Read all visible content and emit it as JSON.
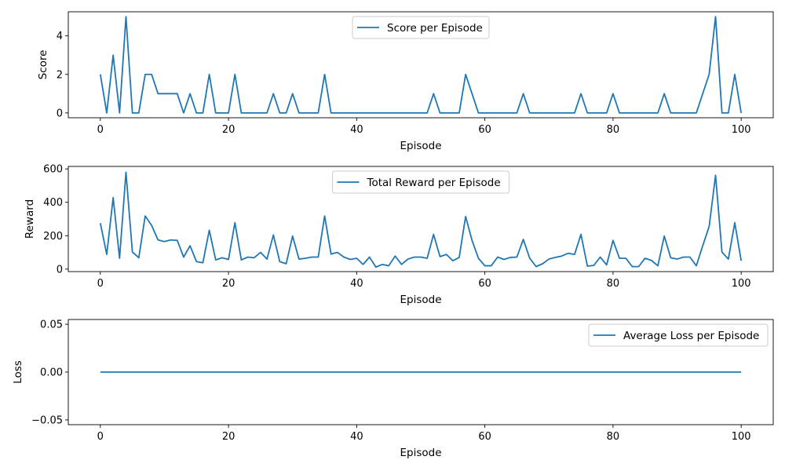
{
  "chart_data": [
    {
      "type": "line",
      "title": "",
      "xlabel": "Episode",
      "ylabel": "Score",
      "xlim": [
        -5,
        105
      ],
      "ylim": [
        -0.25,
        5.25
      ],
      "xticks": [
        0,
        20,
        40,
        60,
        80,
        100
      ],
      "yticks": [
        0,
        2,
        4
      ],
      "legend_position": "upper-center",
      "grid": false,
      "color": "#1f77b4",
      "series": [
        {
          "name": "Score per Episode",
          "x": [
            0,
            1,
            2,
            3,
            4,
            5,
            6,
            7,
            8,
            9,
            10,
            11,
            12,
            13,
            14,
            15,
            16,
            17,
            18,
            19,
            20,
            21,
            22,
            23,
            24,
            25,
            26,
            27,
            28,
            29,
            30,
            31,
            32,
            33,
            34,
            35,
            36,
            37,
            38,
            39,
            40,
            41,
            42,
            43,
            44,
            45,
            46,
            47,
            48,
            49,
            50,
            51,
            52,
            53,
            54,
            55,
            56,
            57,
            58,
            59,
            60,
            61,
            62,
            63,
            64,
            65,
            66,
            67,
            68,
            69,
            70,
            71,
            72,
            73,
            74,
            75,
            76,
            77,
            78,
            79,
            80,
            81,
            82,
            83,
            84,
            85,
            86,
            87,
            88,
            89,
            90,
            91,
            92,
            93,
            94,
            95,
            96,
            97,
            98,
            99,
            100
          ],
          "values": [
            2,
            0,
            3,
            0,
            5,
            0,
            0,
            2,
            2,
            1,
            1,
            1,
            1,
            0,
            1,
            0,
            0,
            2,
            0,
            0,
            0,
            2,
            0,
            0,
            0,
            0,
            0,
            1,
            0,
            0,
            1,
            0,
            0,
            0,
            0,
            2,
            0,
            0,
            0,
            0,
            0,
            0,
            0,
            0,
            0,
            0,
            0,
            0,
            0,
            0,
            0,
            0,
            1,
            0,
            0,
            0,
            0,
            2,
            1,
            0,
            0,
            0,
            0,
            0,
            0,
            0,
            1,
            0,
            0,
            0,
            0,
            0,
            0,
            0,
            0,
            1,
            0,
            0,
            0,
            0,
            1,
            0,
            0,
            0,
            0,
            0,
            0,
            0,
            1,
            0,
            0,
            0,
            0,
            0,
            1,
            2,
            5,
            0,
            0,
            2,
            0
          ]
        }
      ]
    },
    {
      "type": "line",
      "title": "",
      "xlabel": "Episode",
      "ylabel": "Reward",
      "xlim": [
        -5,
        105
      ],
      "ylim": [
        -15,
        615
      ],
      "xticks": [
        0,
        20,
        40,
        60,
        80,
        100
      ],
      "yticks": [
        0,
        200,
        400,
        600
      ],
      "legend_position": "upper-center",
      "grid": false,
      "color": "#1f77b4",
      "series": [
        {
          "name": "Total Reward per Episode",
          "x": [
            0,
            1,
            2,
            3,
            4,
            5,
            6,
            7,
            8,
            9,
            10,
            11,
            12,
            13,
            14,
            15,
            16,
            17,
            18,
            19,
            20,
            21,
            22,
            23,
            24,
            25,
            26,
            27,
            28,
            29,
            30,
            31,
            32,
            33,
            34,
            35,
            36,
            37,
            38,
            39,
            40,
            41,
            42,
            43,
            44,
            45,
            46,
            47,
            48,
            49,
            50,
            51,
            52,
            53,
            54,
            55,
            56,
            57,
            58,
            59,
            60,
            61,
            62,
            63,
            64,
            65,
            66,
            67,
            68,
            69,
            70,
            71,
            72,
            73,
            74,
            75,
            76,
            77,
            78,
            79,
            80,
            81,
            82,
            83,
            84,
            85,
            86,
            87,
            88,
            89,
            90,
            91,
            92,
            93,
            94,
            95,
            96,
            97,
            98,
            99,
            100
          ],
          "values": [
            275,
            88,
            428,
            65,
            580,
            102,
            68,
            318,
            262,
            175,
            165,
            175,
            172,
            72,
            140,
            45,
            38,
            233,
            55,
            68,
            58,
            278,
            55,
            72,
            68,
            100,
            60,
            204,
            45,
            32,
            198,
            60,
            65,
            72,
            72,
            318,
            90,
            100,
            72,
            58,
            65,
            28,
            72,
            12,
            28,
            20,
            78,
            28,
            60,
            72,
            72,
            65,
            208,
            75,
            88,
            50,
            70,
            315,
            172,
            65,
            20,
            20,
            72,
            58,
            70,
            72,
            178,
            65,
            15,
            32,
            60,
            70,
            78,
            95,
            88,
            208,
            18,
            22,
            72,
            25,
            172,
            65,
            65,
            15,
            15,
            65,
            52,
            20,
            198,
            68,
            60,
            72,
            72,
            20,
            140,
            255,
            562,
            102,
            60,
            278,
            50
          ]
        }
      ]
    },
    {
      "type": "line",
      "title": "",
      "xlabel": "Episode",
      "ylabel": "Loss",
      "xlim": [
        -5,
        105
      ],
      "ylim": [
        -0.055,
        0.055
      ],
      "xticks": [
        0,
        20,
        40,
        60,
        80,
        100
      ],
      "yticks": [
        -0.05,
        0,
        0.05
      ],
      "ytick_labels": [
        "−0.05",
        "0.00",
        "0.05"
      ],
      "legend_position": "upper-right",
      "grid": false,
      "color": "#1f77b4",
      "series": [
        {
          "name": "Average Loss per Episode",
          "x": [
            0,
            100
          ],
          "values": [
            0,
            0
          ]
        }
      ]
    }
  ]
}
